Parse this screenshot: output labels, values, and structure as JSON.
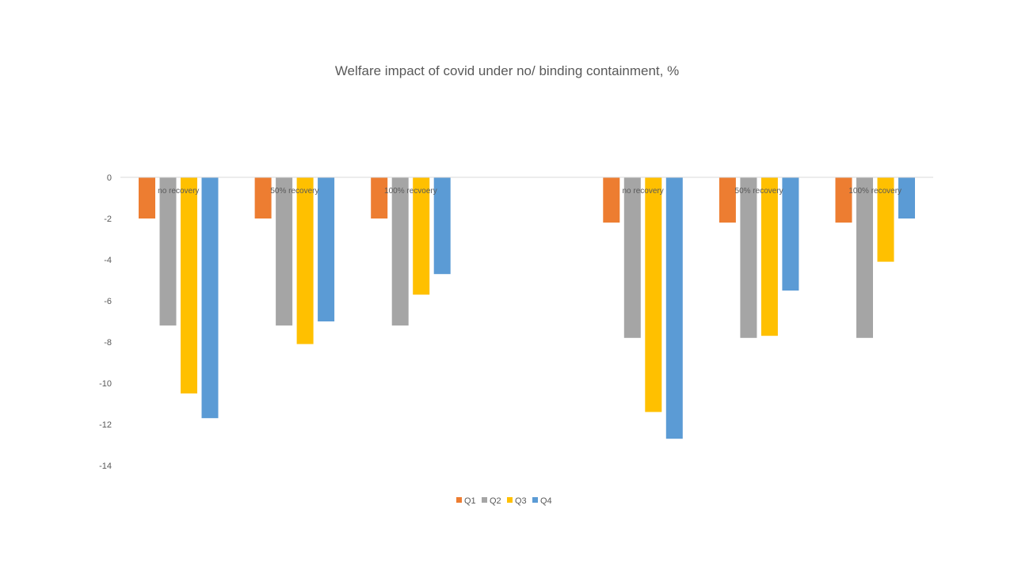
{
  "chart_data": {
    "type": "bar",
    "title": "Welfare impact of covid under no/ binding containment, %",
    "xlabel": "",
    "ylabel": "",
    "categories": [
      "no recovery",
      "50% recovery",
      "100% recvoery",
      "",
      "no recovery",
      "50% recovery",
      "100% recovery"
    ],
    "series": [
      {
        "name": "Q1",
        "color": "#ED7D31",
        "values": [
          -2.0,
          -2.0,
          -2.0,
          null,
          -2.2,
          -2.2,
          -2.2
        ]
      },
      {
        "name": "Q2",
        "color": "#A5A5A5",
        "values": [
          -7.2,
          -7.2,
          -7.2,
          null,
          -7.8,
          -7.8,
          -7.8
        ]
      },
      {
        "name": "Q3",
        "color": "#FFC000",
        "values": [
          -10.5,
          -8.1,
          -5.7,
          null,
          -11.4,
          -7.7,
          -4.1
        ]
      },
      {
        "name": "Q4",
        "color": "#5B9BD5",
        "values": [
          -11.7,
          -7.0,
          -4.7,
          null,
          -12.7,
          -5.5,
          -2.0
        ]
      }
    ],
    "ylim": [
      -14,
      0
    ],
    "yticks": [
      0,
      -2,
      -4,
      -6,
      -8,
      -10,
      -12,
      -14
    ],
    "grid": false,
    "legend_position": "bottom"
  }
}
